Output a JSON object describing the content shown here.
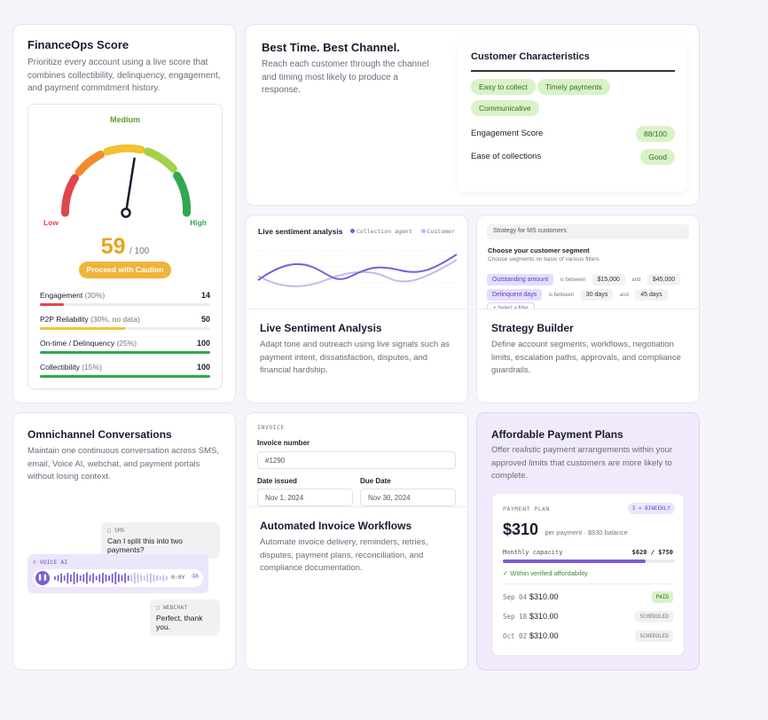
{
  "finops": {
    "title": "FinanceOps Score",
    "desc": "Prioritize every account using a live score that combines collectibility, delinquency, engagement, and payment commitment history.",
    "level": "Medium",
    "low": "Low",
    "high": "High",
    "score": "59",
    "score_max": "/ 100",
    "score_value": 59,
    "action": "Proceed with Caution",
    "metrics": [
      {
        "label": "Engagement",
        "note": "(30%)",
        "value": "14",
        "fraction": 0.14,
        "color": "#e0474c"
      },
      {
        "label": "P2P Reliability",
        "note": "(30%, no data)",
        "value": "50",
        "fraction": 0.5,
        "color": "#f1c232"
      },
      {
        "label": "On-time / Delinquency",
        "note": "(25%)",
        "value": "100",
        "fraction": 1.0,
        "color": "#2fa84f"
      },
      {
        "label": "Collectibility",
        "note": "(15%)",
        "value": "100",
        "fraction": 1.0,
        "color": "#2fa84f"
      }
    ]
  },
  "best_time": {
    "title": "Best Time. Best Channel.",
    "desc": "Reach each customer through the channel and timing most likely to produce a response.",
    "characteristics": {
      "title": "Customer Characteristics",
      "tags": [
        "Easy to collect",
        "Timely payments",
        "Communicative"
      ],
      "engagement_label": "Engagement Score",
      "engagement_value": "88/100",
      "ease_label": "Ease of collections",
      "ease_value": "Good"
    }
  },
  "sentiment": {
    "chart_title": "Live sentiment analysis",
    "legend_agent": "Collection agent",
    "legend_customer": "Customer",
    "agent_color": "#7c5cd6",
    "customer_color": "#c7b8ef",
    "title": "Live Sentiment Analysis",
    "desc": "Adapt tone and outreach using live signals such as payment intent, dissatisfaction, disputes, and financial hardship."
  },
  "strategy": {
    "header": "Strategy for MS customers",
    "segment_title": "Choose your customer segment",
    "segment_sub": "Choose segments on basis of various filters",
    "filter1": {
      "field": "Outstanding amount",
      "op": "is between",
      "from": "$15,000",
      "and": "and",
      "to": "$45,000"
    },
    "filter2": {
      "field": "Delinquent days",
      "op": "is between",
      "from": "30 days",
      "and": "and",
      "to": "45 days"
    },
    "add_filter": "+ Select a filter",
    "title": "Strategy Builder",
    "desc": "Define account segments, workflows, negotiation limits, escalation paths, approvals, and compliance guardrails."
  },
  "omni": {
    "title": "Omnichannel Conversations",
    "desc": "Maintain one continuous conversation across SMS, email, Voice AI, webchat, and payment portals without losing context.",
    "sms_tag": "SMS",
    "sms_text": "Can I split this into two payments?",
    "voice_tag": "VOICE AI",
    "voice_time": "0:0Y",
    "voice_speed": "1x",
    "webchat_tag": "WEBCHAT",
    "webchat_text": "Perfect, thank you."
  },
  "invoice": {
    "tag": "INVOICE",
    "number_label": "Invoice number",
    "number_value": "#1290",
    "issued_label": "Date issued",
    "issued_value": "Nov 1, 2024",
    "due_label": "Due Date",
    "due_value": "Nov 30, 2024",
    "title": "Automated Invoice Workflows",
    "desc": "Automate invoice delivery, reminders, retries, disputes, payment plans, reconciliation, and compliance documentation."
  },
  "plans": {
    "title": "Affordable Payment Plans",
    "desc": "Offer realistic payment arrangements within your approved limits that customers are more likely to complete.",
    "plan_label": "PAYMENT PLAN",
    "plan_badge": "3 × BIWEEKLY",
    "amount": "$310",
    "amount_note": "per payment · $930 balance",
    "capacity_label": "Monthly capacity",
    "capacity_value": "$620 / $750",
    "capacity_fraction": 0.83,
    "verified": "Within verified affordability",
    "schedule": [
      {
        "date": "Sep 04",
        "amount": "$310.00",
        "status": "PAID"
      },
      {
        "date": "Sep 18",
        "amount": "$310.00",
        "status": "SCHEDULED"
      },
      {
        "date": "Oct 02",
        "amount": "$310.00",
        "status": "SCHEDULED"
      }
    ]
  }
}
